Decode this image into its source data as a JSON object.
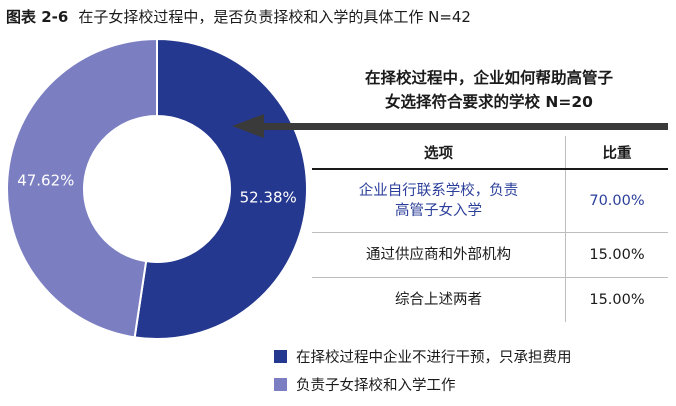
{
  "figure": {
    "number": "图表 2-6",
    "title": "在子女择校过程中，是否负责择校和入学的具体工作 N=42"
  },
  "chart_data": {
    "type": "pie",
    "title": "在子女择校过程中，是否负责择校和入学的具体工作 N=42",
    "slices": [
      {
        "label": "在择校过程中企业不进行干预，只承担费用",
        "value": 52.38,
        "value_label": "52.38%",
        "color": "#25388f"
      },
      {
        "label": "负责子女择校和入学工作",
        "value": 47.62,
        "value_label": "47.62%",
        "color": "#7b7fc2"
      }
    ]
  },
  "callout": {
    "title_line1": "在择校过程中，企业如何帮助高管子",
    "title_line2": "女选择符合要求的学校 N=20",
    "table": {
      "headers": [
        "选项",
        "比重"
      ],
      "rows": [
        {
          "lines": [
            "企业自行联系学校，负责",
            "高管子女入学"
          ],
          "share": "70.00%"
        },
        {
          "lines": [
            "通过供应商和外部机构"
          ],
          "share": "15.00%"
        },
        {
          "lines": [
            "综合上述两者"
          ],
          "share": "15.00%"
        }
      ]
    }
  }
}
